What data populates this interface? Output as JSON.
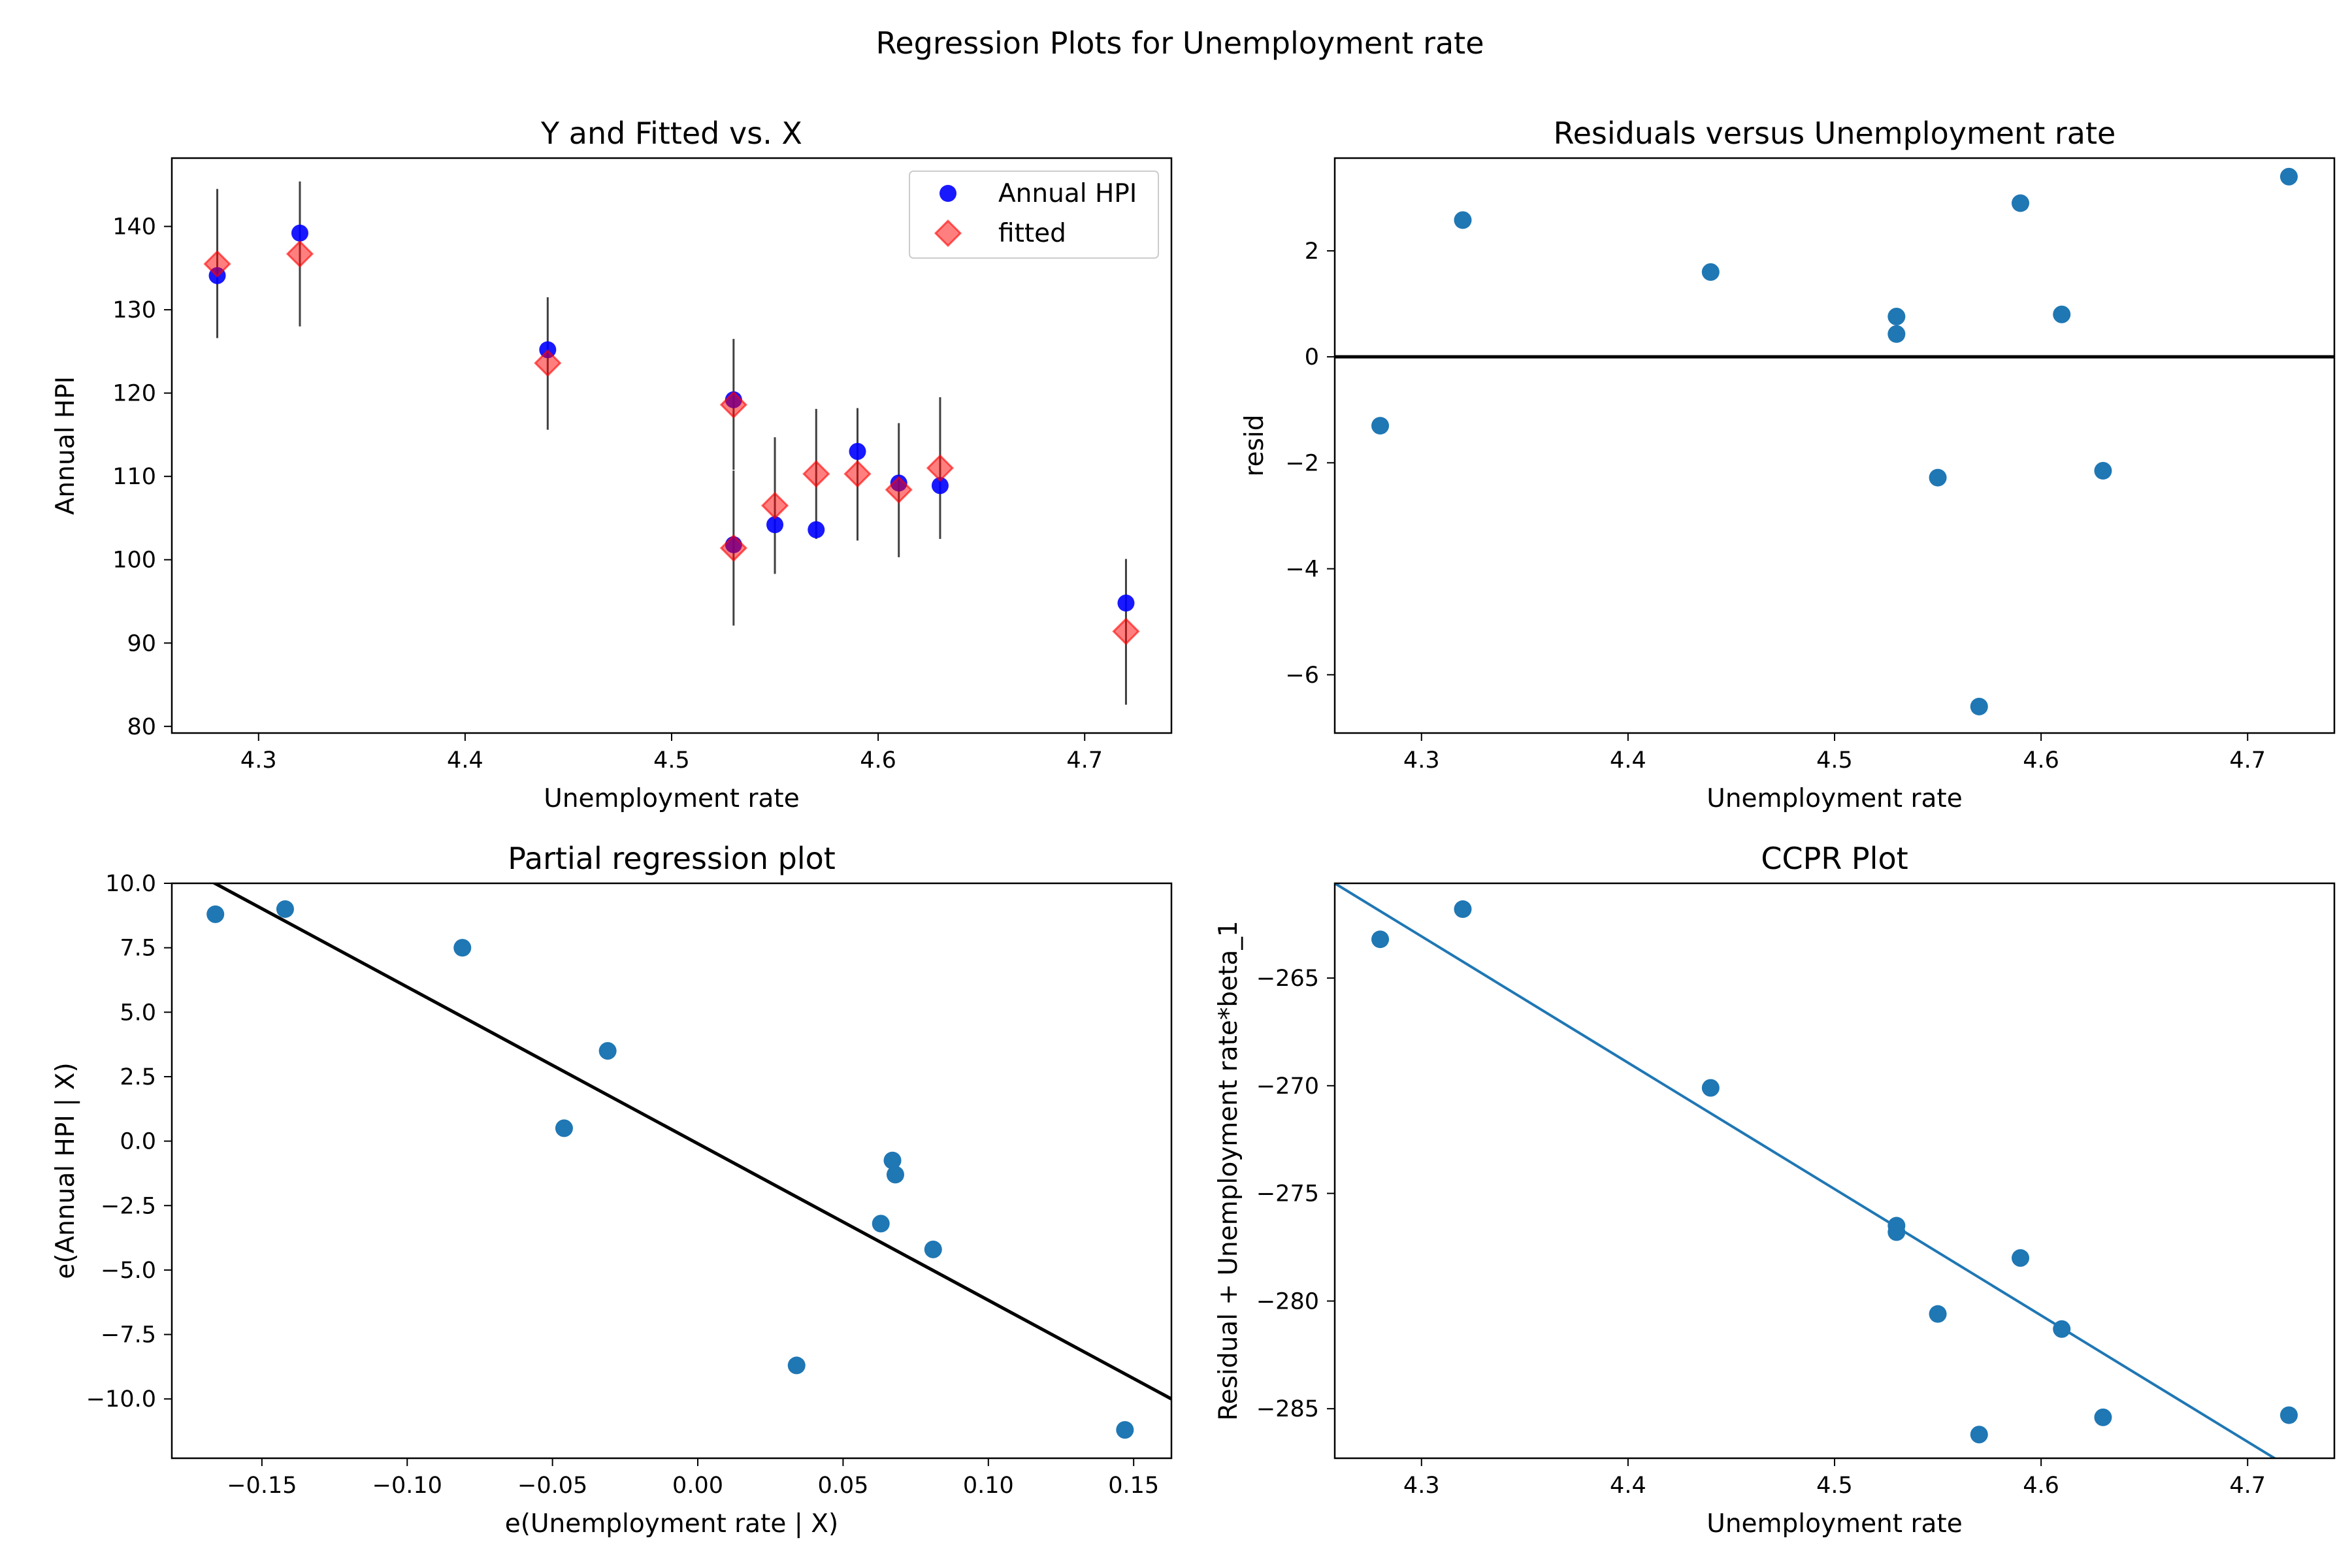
{
  "figure": {
    "suptitle": "Regression Plots for Unemployment rate"
  },
  "colors": {
    "blue_point": "#0000ff",
    "tab_blue": "#1f77b4",
    "fitted": "#ff0000",
    "errorbar": "#000000",
    "line_black": "#000000"
  },
  "chart_data": [
    {
      "type": "scatter",
      "title": "Y and Fitted vs. X",
      "xlabel": "Unemployment rate",
      "ylabel": "Annual HPI",
      "xlim": [
        4.258,
        4.742
      ],
      "ylim": [
        79.2,
        148.2
      ],
      "xticks": [
        "4.3",
        "4.4",
        "4.5",
        "4.6",
        "4.7"
      ],
      "xtick_values": [
        4.3,
        4.4,
        4.5,
        4.6,
        4.7
      ],
      "yticks": [
        "80",
        "90",
        "100",
        "110",
        "120",
        "130",
        "140"
      ],
      "ytick_values": [
        80,
        90,
        100,
        110,
        120,
        130,
        140
      ],
      "legend_position": "upper right",
      "series": [
        {
          "name": "Annual HPI",
          "marker": "circle",
          "x": [
            4.28,
            4.32,
            4.44,
            4.53,
            4.53,
            4.55,
            4.57,
            4.59,
            4.61,
            4.63,
            4.72
          ],
          "y": [
            134.1,
            139.2,
            125.2,
            119.2,
            101.8,
            104.2,
            103.6,
            113.0,
            109.2,
            108.9,
            94.8
          ]
        },
        {
          "name": "fitted",
          "marker": "diamond",
          "x": [
            4.28,
            4.32,
            4.44,
            4.53,
            4.53,
            4.55,
            4.57,
            4.59,
            4.61,
            4.63,
            4.72
          ],
          "y": [
            135.5,
            136.7,
            123.6,
            118.6,
            101.4,
            106.5,
            110.3,
            110.3,
            108.4,
            111.0,
            91.4
          ]
        }
      ],
      "errorbars": {
        "x": [
          4.28,
          4.32,
          4.44,
          4.53,
          4.53,
          4.55,
          4.57,
          4.59,
          4.61,
          4.63,
          4.72
        ],
        "low": [
          126.6,
          128.0,
          115.6,
          110.8,
          92.1,
          98.3,
          102.5,
          102.3,
          100.3,
          102.5,
          82.6
        ],
        "high": [
          144.5,
          145.4,
          131.5,
          126.5,
          110.7,
          114.7,
          118.1,
          118.2,
          116.4,
          119.5,
          100.1
        ]
      }
    },
    {
      "type": "scatter",
      "title": "Residuals versus Unemployment rate",
      "xlabel": "Unemployment rate",
      "ylabel": "resid",
      "xlim": [
        4.258,
        4.742
      ],
      "ylim": [
        -7.1,
        3.75
      ],
      "xticks": [
        "4.3",
        "4.4",
        "4.5",
        "4.6",
        "4.7"
      ],
      "xtick_values": [
        4.3,
        4.4,
        4.5,
        4.6,
        4.7
      ],
      "yticks": [
        "−6",
        "−4",
        "−2",
        "0",
        "2"
      ],
      "ytick_values": [
        -6,
        -4,
        -2,
        0,
        2
      ],
      "hline": 0,
      "series": [
        {
          "x": [
            4.28,
            4.32,
            4.44,
            4.53,
            4.53,
            4.55,
            4.57,
            4.59,
            4.61,
            4.63,
            4.72
          ],
          "y": [
            -1.3,
            2.58,
            1.6,
            0.76,
            0.43,
            -2.28,
            -6.6,
            2.9,
            0.8,
            -2.15,
            3.4
          ]
        }
      ]
    },
    {
      "type": "scatter",
      "title": "Partial regression plot",
      "xlabel": "e(Unemployment rate | X)",
      "ylabel": "e(Annual HPI | X)",
      "xlim": [
        -0.181,
        0.163
      ],
      "ylim": [
        -12.3,
        10.0
      ],
      "xticks": [
        "−0.15",
        "−0.10",
        "−0.05",
        "0.00",
        "0.05",
        "0.10",
        "0.15"
      ],
      "xtick_values": [
        -0.15,
        -0.1,
        -0.05,
        0.0,
        0.05,
        0.1,
        0.15
      ],
      "yticks": [
        "−10.0",
        "−7.5",
        "−5.0",
        "−2.5",
        "0.0",
        "2.5",
        "5.0",
        "7.5",
        "10.0"
      ],
      "ytick_values": [
        -10.0,
        -7.5,
        -5.0,
        -2.5,
        0.0,
        2.5,
        5.0,
        7.5,
        10.0
      ],
      "fit_line": {
        "x": [
          -0.181,
          0.163
        ],
        "y": [
          10.9,
          -10.0
        ]
      },
      "series": [
        {
          "x": [
            -0.166,
            -0.142,
            -0.081,
            -0.046,
            -0.031,
            0.034,
            0.063,
            0.067,
            0.068,
            0.081,
            0.147
          ],
          "y": [
            8.8,
            9.0,
            7.5,
            0.5,
            3.5,
            -8.7,
            -3.2,
            -0.75,
            -1.3,
            -4.2,
            -11.2
          ]
        }
      ]
    },
    {
      "type": "scatter",
      "title": "CCPR Plot",
      "xlabel": "Unemployment rate",
      "ylabel": "Residual + Unemployment rate*beta_1",
      "xlim": [
        4.258,
        4.742
      ],
      "ylim": [
        -287.3,
        -260.6
      ],
      "xticks": [
        "4.3",
        "4.4",
        "4.5",
        "4.6",
        "4.7"
      ],
      "xtick_values": [
        4.3,
        4.4,
        4.5,
        4.6,
        4.7
      ],
      "yticks": [
        "−285",
        "−280",
        "−275",
        "−270",
        "−265"
      ],
      "ytick_values": [
        -285,
        -280,
        -275,
        -270,
        -265
      ],
      "fit_line": {
        "x": [
          4.258,
          4.742
        ],
        "y": [
          -260.6,
          -289.0
        ]
      },
      "series": [
        {
          "x": [
            4.28,
            4.32,
            4.44,
            4.53,
            4.53,
            4.55,
            4.57,
            4.59,
            4.61,
            4.63,
            4.72
          ],
          "y": [
            -263.2,
            -261.8,
            -270.1,
            -276.5,
            -276.8,
            -280.6,
            -286.2,
            -278.0,
            -281.3,
            -285.4,
            -285.3
          ]
        }
      ]
    }
  ]
}
